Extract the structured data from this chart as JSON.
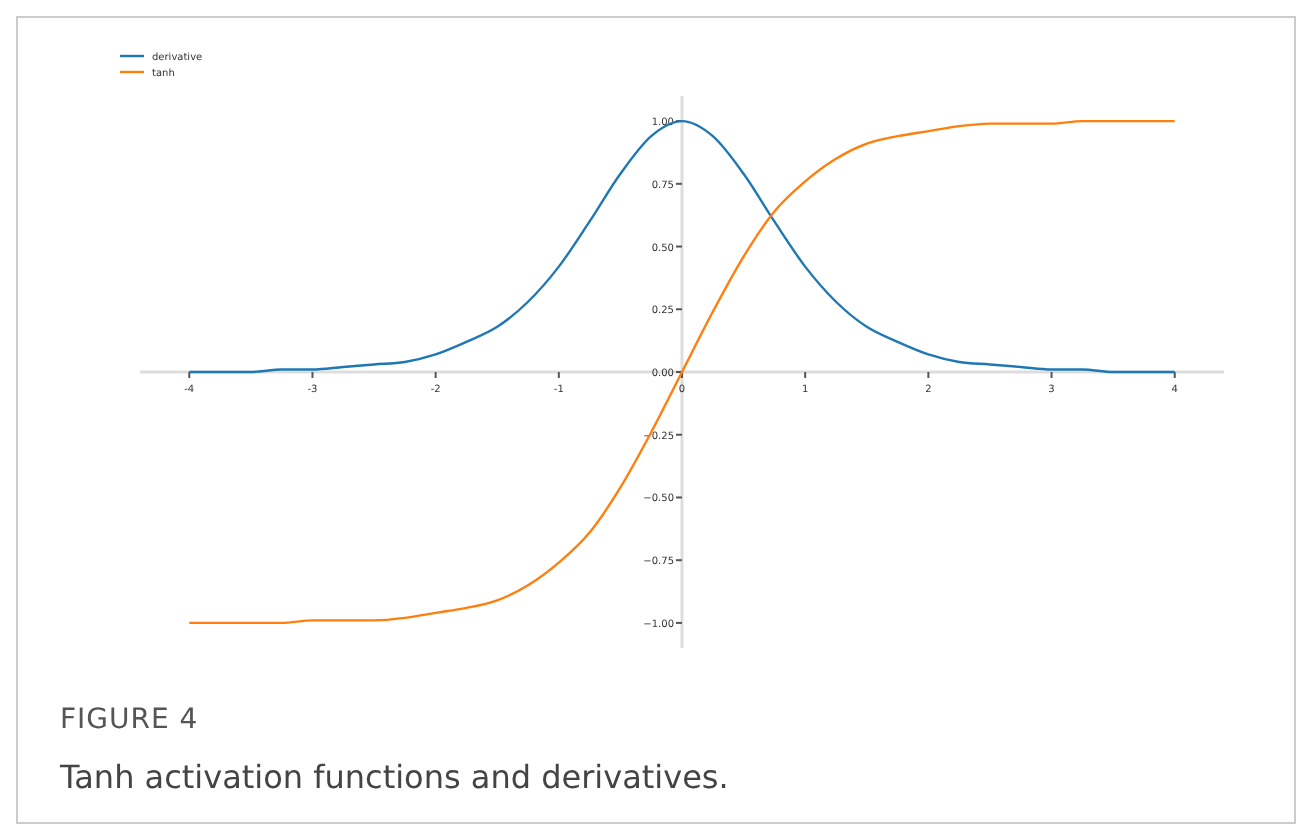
{
  "chart_data": {
    "type": "line",
    "title": "FIGURE 4",
    "subtitle": "Tanh activation functions and derivatives.",
    "x": [
      -4,
      -3.75,
      -3.5,
      -3.25,
      -3,
      -2.75,
      -2.5,
      -2.25,
      -2,
      -1.75,
      -1.5,
      -1.25,
      -1,
      -0.75,
      -0.5,
      -0.25,
      0,
      0.25,
      0.5,
      0.75,
      1,
      1.25,
      1.5,
      1.75,
      2,
      2.25,
      2.5,
      2.75,
      3,
      3.25,
      3.5,
      3.75,
      4
    ],
    "series": [
      {
        "name": "derivative",
        "color": "#1f77b4",
        "values": [
          0,
          0,
          0,
          0.01,
          0.01,
          0.02,
          0.03,
          0.04,
          0.07,
          0.12,
          0.18,
          0.28,
          0.42,
          0.6,
          0.79,
          0.94,
          1,
          0.94,
          0.79,
          0.6,
          0.42,
          0.28,
          0.18,
          0.12,
          0.07,
          0.04,
          0.03,
          0.02,
          0.01,
          0.01,
          0,
          0,
          0
        ]
      },
      {
        "name": "tanh",
        "color": "#ff7f0e",
        "values": [
          -1,
          -1,
          -1,
          -1,
          -0.99,
          -0.99,
          -0.99,
          -0.98,
          -0.96,
          -0.94,
          -0.91,
          -0.85,
          -0.76,
          -0.64,
          -0.46,
          -0.24,
          0,
          0.24,
          0.46,
          0.64,
          0.76,
          0.85,
          0.91,
          0.94,
          0.96,
          0.98,
          0.99,
          0.99,
          0.99,
          1,
          1,
          1,
          1
        ]
      }
    ],
    "xlim": [
      -4.4,
      4.4
    ],
    "ylim": [
      -1.1,
      1.1
    ],
    "xticks": [
      -4,
      -3,
      -2,
      -1,
      0,
      1,
      2,
      3,
      4
    ],
    "yticks": [
      {
        "value": -1,
        "label": "−1.00"
      },
      {
        "value": -0.75,
        "label": "−0.75"
      },
      {
        "value": -0.5,
        "label": "−0.50"
      },
      {
        "value": -0.25,
        "label": "−0.25"
      },
      {
        "value": 0,
        "label": "0.00"
      },
      {
        "value": 0.25,
        "label": "0.25"
      },
      {
        "value": 0.5,
        "label": "0.50"
      },
      {
        "value": 0.75,
        "label": "0.75"
      },
      {
        "value": 1,
        "label": "1.00"
      }
    ],
    "legend": "top left",
    "grid": false,
    "marker": "none",
    "line_style": "solid"
  }
}
